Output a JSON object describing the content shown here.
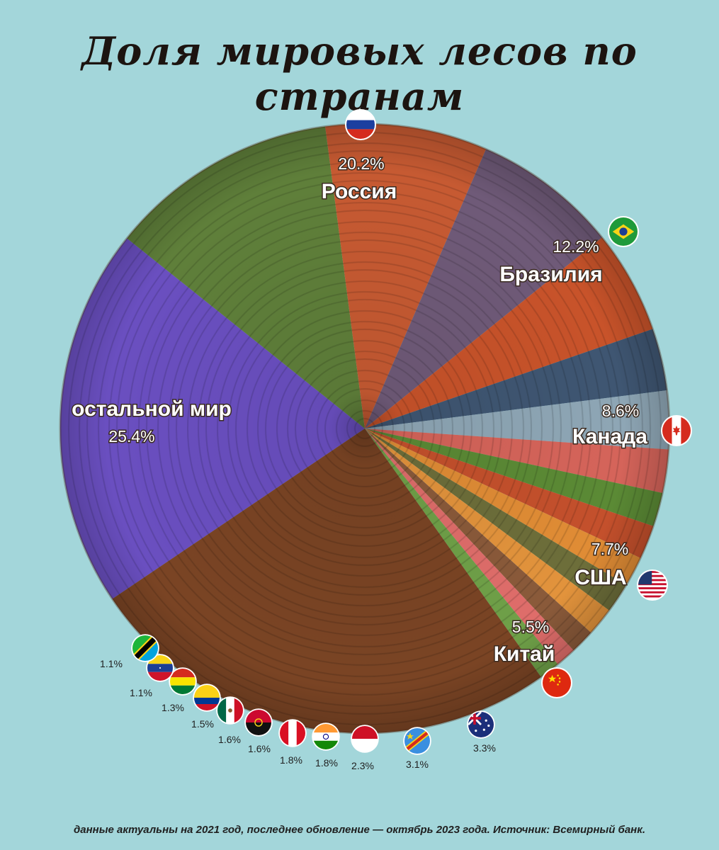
{
  "title": "Доля мировых лесов по странам",
  "footnote": "данные актуальны на 2021 год, последнее обновление — октябрь 2023 года. Источник: Всемирный банк.",
  "chart_data": {
    "type": "pie",
    "unit": "%",
    "slices": [
      {
        "label": "Россия",
        "value": 20.2,
        "display": "20.2%",
        "color": "#6a4fc0",
        "flag": "russia"
      },
      {
        "label": "Бразилия",
        "value": 12.2,
        "display": "12.2%",
        "color": "#5f7f3a",
        "flag": "brazil"
      },
      {
        "label": "Канада",
        "value": 8.6,
        "display": "8.6%",
        "color": "#c65a32",
        "flag": "canada"
      },
      {
        "label": "США",
        "value": 7.7,
        "display": "7.7%",
        "color": "#6f5a78",
        "flag": "usa"
      },
      {
        "label": "Китай",
        "value": 5.5,
        "display": "5.5%",
        "color": "#c8532a",
        "flag": "china"
      },
      {
        "label": "",
        "value": 3.3,
        "display": "3.3%",
        "color": "#3f5672",
        "flag": "australia"
      },
      {
        "label": "",
        "value": 3.1,
        "display": "3.1%",
        "color": "#8ea6b5",
        "flag": "drcongo"
      },
      {
        "label": "",
        "value": 2.3,
        "display": "2.3%",
        "color": "#d5645a",
        "flag": "indonesia"
      },
      {
        "label": "",
        "value": 1.8,
        "display": "1.8%",
        "color": "#5b8a35",
        "flag": "india"
      },
      {
        "label": "",
        "value": 1.8,
        "display": "1.8%",
        "color": "#c4502c",
        "flag": "peru"
      },
      {
        "label": "",
        "value": 1.6,
        "display": "1.6%",
        "color": "#e08c35",
        "flag": "angola"
      },
      {
        "label": "",
        "value": 1.6,
        "display": "1.6%",
        "color": "#6d6e3a",
        "flag": "mexico"
      },
      {
        "label": "",
        "value": 1.5,
        "display": "1.5%",
        "color": "#e2933c",
        "flag": "colombia"
      },
      {
        "label": "",
        "value": 1.3,
        "display": "1.3%",
        "color": "#8a5a3a",
        "flag": "bolivia"
      },
      {
        "label": "",
        "value": 1.1,
        "display": "1.1%",
        "color": "#df6d6a",
        "flag": "venezuela"
      },
      {
        "label": "",
        "value": 1.1,
        "display": "1.1%",
        "color": "#6fa048",
        "flag": "tanzania"
      },
      {
        "label": "остальной мир",
        "value": 25.4,
        "display": "25.4%",
        "color": "#7a4424",
        "flag": ""
      }
    ]
  }
}
